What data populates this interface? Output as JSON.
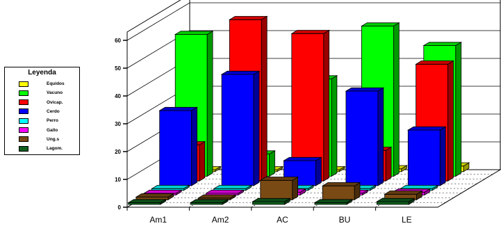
{
  "chart_data": {
    "type": "bar",
    "subtype": "3d-grouped-bar",
    "categories": [
      "Am1",
      "Am2",
      "AC",
      "BU",
      "LE"
    ],
    "y_ticks": [
      "0",
      "10",
      "20",
      "30",
      "40",
      "50",
      "60"
    ],
    "ylim": [
      0,
      60
    ],
    "legend_title": "Leyenda",
    "legend_position": "left",
    "grid": true,
    "series": [
      {
        "name": "Equidos",
        "color": "#ffff00",
        "values": [
          0,
          0,
          0,
          1,
          2
        ]
      },
      {
        "name": "Vacuno",
        "color": "#00ff00",
        "values": [
          51,
          8,
          35,
          54,
          47
        ]
      },
      {
        "name": "Ovicap.",
        "color": "#ff0000",
        "values": [
          13,
          58,
          53,
          11,
          42
        ]
      },
      {
        "name": "Cerdo",
        "color": "#0000ff",
        "values": [
          27,
          40,
          9,
          34,
          20
        ]
      },
      {
        "name": "Perro",
        "color": "#00ffff",
        "values": [
          0,
          0,
          0,
          0,
          0
        ]
      },
      {
        "name": "Gallo",
        "color": "#ff00ff",
        "values": [
          0,
          0,
          1,
          0,
          1
        ]
      },
      {
        "name": "Ung.s",
        "color": "#7a4a14",
        "values": [
          1,
          0,
          7,
          5,
          2
        ]
      },
      {
        "name": "Lagom.",
        "color": "#0f5f1e",
        "values": [
          0,
          0,
          1,
          0,
          1
        ]
      }
    ]
  }
}
